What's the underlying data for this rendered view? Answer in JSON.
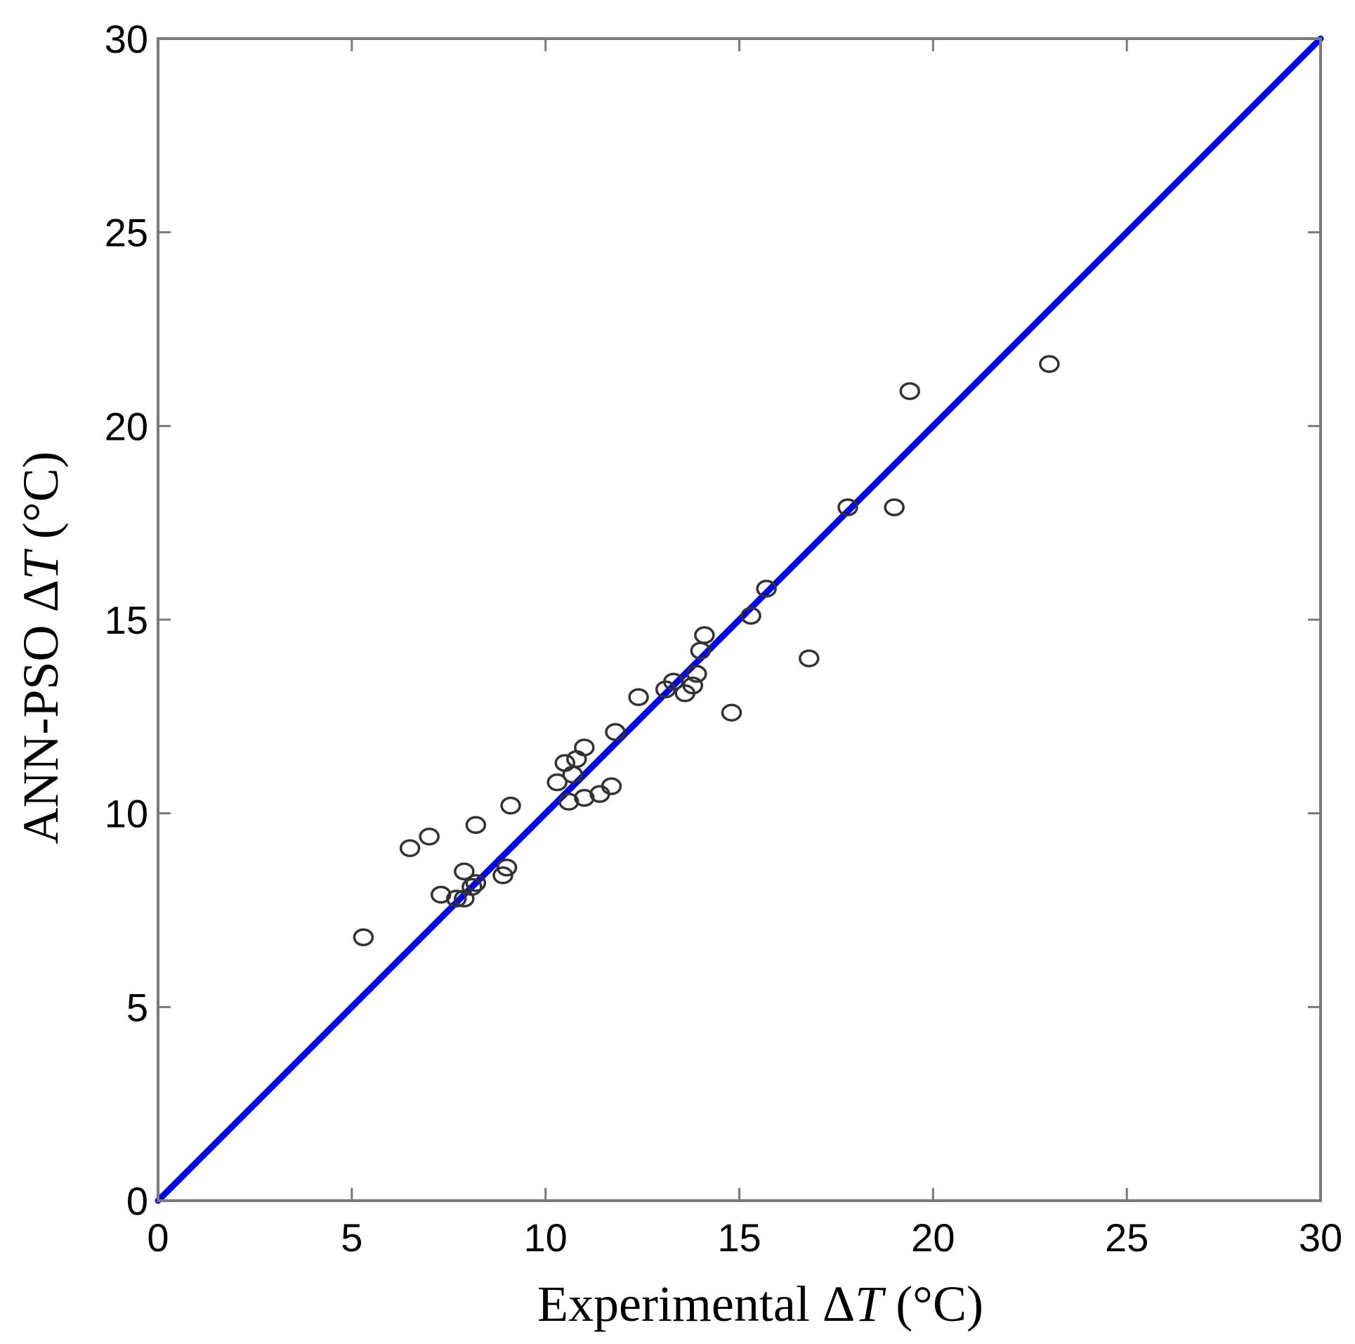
{
  "chart_data": {
    "type": "scatter",
    "title": "",
    "xlabel": "Experimental ΔT (°C)",
    "ylabel": "ANN-PSO ΔT (°C)",
    "axis_title_parts": {
      "x": {
        "before": "Experimental Δ",
        "var": "T",
        "after": " (°C)"
      },
      "y": {
        "before": "ANN-PSO Δ",
        "var": "T",
        "after": " (°C)"
      }
    },
    "xlim": [
      0,
      30
    ],
    "ylim": [
      0,
      30
    ],
    "xticks": [
      0,
      5,
      10,
      15,
      20,
      25,
      30
    ],
    "yticks": [
      0,
      5,
      10,
      15,
      20,
      25,
      30
    ],
    "grid": false,
    "marker": "circle-open",
    "line_color": "#0000ee",
    "marker_color": "#333333",
    "reference_line": {
      "name": "",
      "x": [
        0,
        30
      ],
      "y": [
        0,
        30
      ]
    },
    "series": [
      {
        "name": "",
        "points": [
          [
            5.3,
            6.8
          ],
          [
            6.5,
            9.1
          ],
          [
            7.0,
            9.4
          ],
          [
            7.3,
            7.9
          ],
          [
            7.7,
            7.8
          ],
          [
            7.9,
            7.8
          ],
          [
            7.9,
            8.5
          ],
          [
            8.1,
            8.1
          ],
          [
            8.2,
            8.2
          ],
          [
            8.2,
            9.7
          ],
          [
            8.9,
            8.4
          ],
          [
            9.0,
            8.6
          ],
          [
            9.1,
            10.2
          ],
          [
            10.3,
            10.8
          ],
          [
            10.5,
            11.3
          ],
          [
            10.6,
            10.3
          ],
          [
            10.7,
            11.0
          ],
          [
            10.8,
            11.4
          ],
          [
            11.0,
            11.7
          ],
          [
            11.0,
            10.4
          ],
          [
            11.4,
            10.5
          ],
          [
            11.7,
            10.7
          ],
          [
            11.8,
            12.1
          ],
          [
            12.4,
            13.0
          ],
          [
            13.1,
            13.2
          ],
          [
            13.3,
            13.4
          ],
          [
            13.6,
            13.1
          ],
          [
            13.8,
            13.3
          ],
          [
            13.9,
            13.6
          ],
          [
            14.0,
            14.2
          ],
          [
            14.1,
            14.6
          ],
          [
            14.8,
            12.6
          ],
          [
            15.3,
            15.1
          ],
          [
            15.7,
            15.8
          ],
          [
            16.8,
            14.0
          ],
          [
            17.8,
            17.9
          ],
          [
            19.0,
            17.9
          ],
          [
            19.4,
            20.9
          ],
          [
            23.0,
            21.6
          ]
        ]
      }
    ]
  }
}
